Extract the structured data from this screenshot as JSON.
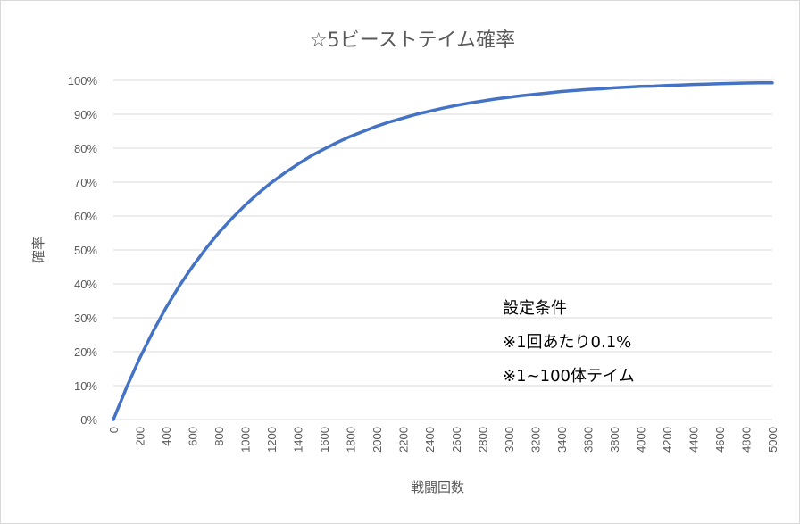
{
  "chart_data": {
    "type": "line",
    "title": "☆5ビーストテイム確率",
    "xlabel": "戦闘回数",
    "ylabel": "確率",
    "xlim": [
      0,
      5000
    ],
    "ylim": [
      0,
      1
    ],
    "x_ticks": [
      "0",
      "200",
      "400",
      "600",
      "800",
      "1000",
      "1200",
      "1400",
      "1600",
      "1800",
      "2000",
      "2200",
      "2400",
      "2600",
      "2800",
      "3000",
      "3200",
      "3400",
      "3600",
      "3800",
      "4000",
      "4200",
      "4400",
      "4600",
      "4800",
      "5000"
    ],
    "y_ticks": [
      "0%",
      "10%",
      "20%",
      "30%",
      "40%",
      "50%",
      "60%",
      "70%",
      "80%",
      "90%",
      "100%"
    ],
    "grid": true,
    "series": [
      {
        "color": "#4472c4",
        "x": [
          0,
          100,
          200,
          300,
          400,
          500,
          600,
          700,
          800,
          900,
          1000,
          1100,
          1200,
          1300,
          1400,
          1500,
          1600,
          1700,
          1800,
          1900,
          2000,
          2100,
          2200,
          2300,
          2400,
          2500,
          2600,
          2700,
          2800,
          2900,
          3000,
          3100,
          3200,
          3300,
          3400,
          3500,
          3600,
          3700,
          3800,
          3900,
          4000,
          4100,
          4200,
          4300,
          4400,
          4500,
          4600,
          4700,
          4800,
          4900,
          5000
        ],
        "y": [
          0,
          0.095,
          0.181,
          0.259,
          0.33,
          0.394,
          0.451,
          0.503,
          0.551,
          0.593,
          0.632,
          0.667,
          0.699,
          0.727,
          0.753,
          0.777,
          0.798,
          0.817,
          0.835,
          0.85,
          0.865,
          0.878,
          0.889,
          0.9,
          0.909,
          0.918,
          0.926,
          0.933,
          0.939,
          0.945,
          0.95,
          0.955,
          0.959,
          0.963,
          0.967,
          0.97,
          0.973,
          0.975,
          0.978,
          0.98,
          0.982,
          0.983,
          0.985,
          0.986,
          0.988,
          0.989,
          0.99,
          0.991,
          0.992,
          0.993,
          0.993
        ]
      }
    ],
    "annotations": [
      "設定条件",
      "※1回あたり0.1%",
      "※1~100体テイム"
    ]
  }
}
